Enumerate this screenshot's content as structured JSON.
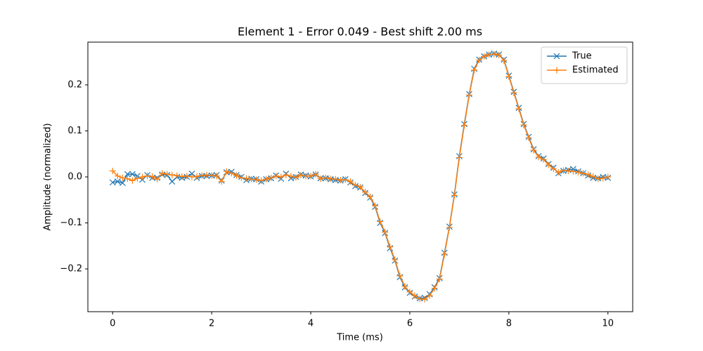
{
  "chart_data": {
    "type": "line",
    "title": "Element 1 - Error 0.049 - Best shift 2.00 ms",
    "x_label": "Time (ms)",
    "y_label": "Amplitude (normalized)",
    "x": [
      0,
      0.1,
      0.2,
      0.3,
      0.4,
      0.5,
      0.6,
      0.7,
      0.8,
      0.9,
      1,
      1.1,
      1.2,
      1.3,
      1.4,
      1.5,
      1.6,
      1.7,
      1.8,
      1.9,
      2,
      2.1,
      2.2,
      2.3,
      2.4,
      2.5,
      2.6,
      2.7,
      2.8,
      2.9,
      3,
      3.1,
      3.2,
      3.3,
      3.4,
      3.5,
      3.6,
      3.7,
      3.8,
      3.9,
      4,
      4.1,
      4.2,
      4.3,
      4.4,
      4.5,
      4.6,
      4.7,
      4.8,
      4.9,
      5,
      5.1,
      5.2,
      5.3,
      5.4,
      5.5,
      5.6,
      5.7,
      5.8,
      5.9,
      6,
      6.1,
      6.2,
      6.3,
      6.4,
      6.5,
      6.6,
      6.7,
      6.8,
      6.9,
      7,
      7.1,
      7.2,
      7.3,
      7.4,
      7.5,
      7.6,
      7.7,
      7.8,
      7.9,
      8,
      8.1,
      8.2,
      8.3,
      8.4,
      8.5,
      8.6,
      8.7,
      8.8,
      8.9,
      9,
      9.1,
      9.2,
      9.3,
      9.4,
      9.5,
      9.6,
      9.7,
      9.8,
      9.9,
      10
    ],
    "series": [
      {
        "name": "True",
        "color": "#1f77b4",
        "marker": "x",
        "values": [
          -0.012,
          -0.01,
          -0.013,
          0.006,
          0.006,
          0.002,
          -0.006,
          0.004,
          -0.002,
          -0.002,
          0.005,
          0.004,
          -0.01,
          0.0,
          -0.002,
          0.0,
          0.007,
          -0.002,
          0.002,
          0.002,
          0.003,
          0.004,
          -0.008,
          0.01,
          0.011,
          0.004,
          0.0,
          -0.007,
          -0.004,
          -0.005,
          -0.01,
          -0.005,
          -0.003,
          0.003,
          -0.004,
          0.007,
          -0.003,
          0.0,
          0.005,
          0.003,
          0.001,
          0.005,
          -0.003,
          -0.003,
          -0.005,
          -0.007,
          -0.008,
          -0.005,
          -0.012,
          -0.02,
          -0.023,
          -0.035,
          -0.045,
          -0.065,
          -0.1,
          -0.122,
          -0.155,
          -0.182,
          -0.218,
          -0.24,
          -0.252,
          -0.26,
          -0.264,
          -0.263,
          -0.255,
          -0.24,
          -0.22,
          -0.165,
          -0.108,
          -0.038,
          0.045,
          0.115,
          0.18,
          0.235,
          0.255,
          0.262,
          0.266,
          0.268,
          0.266,
          0.255,
          0.22,
          0.185,
          0.15,
          0.115,
          0.087,
          0.06,
          0.045,
          0.04,
          0.028,
          0.02,
          0.008,
          0.013,
          0.015,
          0.017,
          0.012,
          0.008,
          0.003,
          -0.002,
          -0.003,
          0.0,
          -0.002
        ]
      },
      {
        "name": "Estimated",
        "color": "#ff7f0e",
        "marker": "+",
        "values": [
          0.013,
          0.002,
          -0.002,
          -0.004,
          -0.008,
          -0.003,
          0.0,
          0.002,
          0.001,
          -0.005,
          0.008,
          0.006,
          0.004,
          0.003,
          0.001,
          0.002,
          0.0,
          0.001,
          0.003,
          0.004,
          0.003,
          0.002,
          -0.01,
          0.012,
          0.008,
          0.003,
          -0.002,
          -0.003,
          -0.005,
          -0.006,
          -0.008,
          -0.005,
          -0.002,
          0.002,
          0.0,
          0.004,
          0.002,
          -0.001,
          0.004,
          0.002,
          0.002,
          0.006,
          -0.004,
          -0.002,
          -0.004,
          -0.005,
          -0.007,
          -0.006,
          -0.01,
          -0.018,
          -0.022,
          -0.033,
          -0.043,
          -0.063,
          -0.097,
          -0.12,
          -0.152,
          -0.18,
          -0.215,
          -0.238,
          -0.25,
          -0.258,
          -0.265,
          -0.266,
          -0.258,
          -0.242,
          -0.222,
          -0.168,
          -0.11,
          -0.04,
          0.042,
          0.112,
          0.178,
          0.232,
          0.254,
          0.262,
          0.266,
          0.267,
          0.265,
          0.253,
          0.218,
          0.183,
          0.148,
          0.113,
          0.085,
          0.058,
          0.043,
          0.038,
          0.026,
          0.018,
          0.01,
          0.014,
          0.013,
          0.012,
          0.01,
          0.008,
          0.005,
          0.001,
          -0.004,
          -0.003,
          0.0
        ]
      }
    ],
    "xlim": [
      -0.5,
      10.5
    ],
    "ylim": [
      -0.293,
      0.293
    ],
    "xticks": [
      0,
      2,
      4,
      6,
      8,
      10
    ],
    "yticks": [
      {
        "value": -0.2,
        "label": "−0.2"
      },
      {
        "value": -0.1,
        "label": "−0.1"
      },
      {
        "value": 0,
        "label": "0.0"
      },
      0.1,
      0.2
    ],
    "legend": "upper right",
    "grid": false
  }
}
